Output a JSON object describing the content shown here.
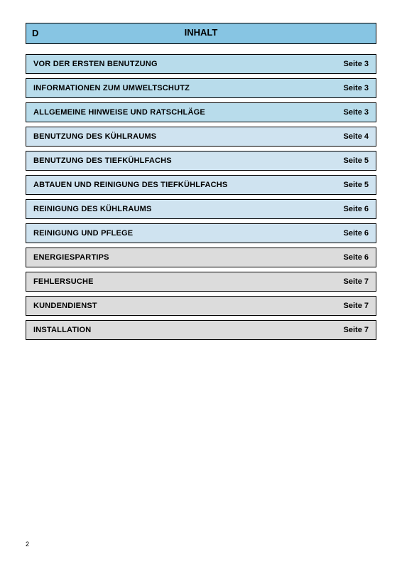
{
  "header": {
    "letter": "D",
    "title": "INHALT",
    "background_color": "#87c5e3"
  },
  "toc": {
    "items": [
      {
        "title": "VOR DER ERSTEN BENUTZUNG",
        "page": "Seite 3",
        "bg": "#b8dceb"
      },
      {
        "title": "INFORMATIONEN ZUM UMWELTSCHUTZ",
        "page": "Seite 3",
        "bg": "#b8dceb"
      },
      {
        "title": "ALLGEMEINE HINWEISE UND RATSCHLÄGE",
        "page": "Seite 3",
        "bg": "#b8dceb"
      },
      {
        "title": "BENUTZUNG DES KÜHLRAUMS",
        "page": "Seite 4",
        "bg": "#cfe3f0"
      },
      {
        "title": "BENUTZUNG DES TIEFKÜHLFACHS",
        "page": "Seite 5",
        "bg": "#cfe3f0"
      },
      {
        "title": "ABTAUEN UND REINIGUNG DES TIEFKÜHLFACHS",
        "page": "Seite 5",
        "bg": "#cfe3f0"
      },
      {
        "title": "REINIGUNG DES KÜHLRAUMS",
        "page": "Seite 6",
        "bg": "#cfe3f0"
      },
      {
        "title": "REINIGUNG UND PFLEGE",
        "page": "Seite 6",
        "bg": "#cfe3f0"
      },
      {
        "title": "ENERGIESPARTIPS",
        "page": "Seite 6",
        "bg": "#dcdcdc"
      },
      {
        "title": "FEHLERSUCHE",
        "page": "Seite 7",
        "bg": "#dcdcdc"
      },
      {
        "title": "KUNDENDIENST",
        "page": "Seite 7",
        "bg": "#dcdcdc"
      },
      {
        "title": "INSTALLATION",
        "page": "Seite 7",
        "bg": "#dcdcdc"
      }
    ]
  },
  "page_number": "2"
}
